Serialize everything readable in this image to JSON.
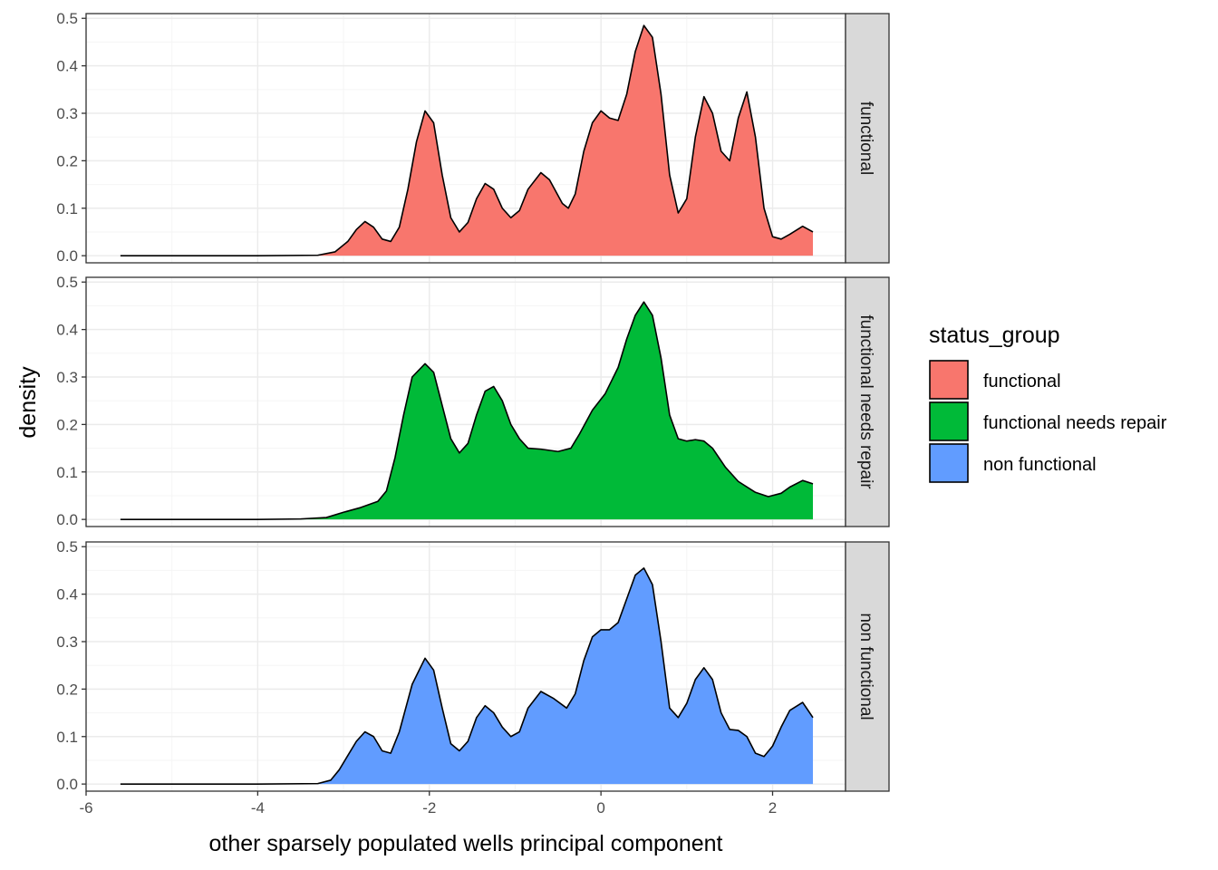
{
  "chart_data": {
    "type": "area",
    "xlabel": "other sparsely populated wells principal component",
    "ylabel": "density",
    "xlim": [
      -6,
      2.85
    ],
    "ylim": [
      -0.015,
      0.51
    ],
    "x_ticks": [
      -6,
      -4,
      -2,
      0,
      2
    ],
    "y_ticks": [
      0.0,
      0.1,
      0.2,
      0.3,
      0.4,
      0.5
    ],
    "x_tick_labels": [
      "-6",
      "-4",
      "-2",
      "0",
      "2"
    ],
    "y_tick_labels": [
      "0.0",
      "0.1",
      "0.2",
      "0.3",
      "0.4",
      "0.5"
    ],
    "grid": true,
    "legend_position": "right",
    "legend_title": "status_group",
    "series": [
      {
        "name": "functional",
        "color": "#F8766D",
        "points": [
          [
            -5.6,
            0
          ],
          [
            -4,
            0
          ],
          [
            -3.3,
            0.001
          ],
          [
            -3.1,
            0.008
          ],
          [
            -2.95,
            0.03
          ],
          [
            -2.85,
            0.055
          ],
          [
            -2.75,
            0.072
          ],
          [
            -2.65,
            0.06
          ],
          [
            -2.55,
            0.035
          ],
          [
            -2.45,
            0.03
          ],
          [
            -2.35,
            0.06
          ],
          [
            -2.25,
            0.14
          ],
          [
            -2.15,
            0.24
          ],
          [
            -2.05,
            0.305
          ],
          [
            -1.95,
            0.28
          ],
          [
            -1.85,
            0.17
          ],
          [
            -1.75,
            0.08
          ],
          [
            -1.65,
            0.05
          ],
          [
            -1.55,
            0.07
          ],
          [
            -1.45,
            0.12
          ],
          [
            -1.35,
            0.152
          ],
          [
            -1.25,
            0.14
          ],
          [
            -1.15,
            0.1
          ],
          [
            -1.05,
            0.08
          ],
          [
            -0.95,
            0.095
          ],
          [
            -0.85,
            0.14
          ],
          [
            -0.7,
            0.175
          ],
          [
            -0.6,
            0.16
          ],
          [
            -0.45,
            0.11
          ],
          [
            -0.38,
            0.1
          ],
          [
            -0.3,
            0.13
          ],
          [
            -0.2,
            0.22
          ],
          [
            -0.1,
            0.28
          ],
          [
            0,
            0.305
          ],
          [
            0.1,
            0.29
          ],
          [
            0.2,
            0.285
          ],
          [
            0.3,
            0.34
          ],
          [
            0.4,
            0.43
          ],
          [
            0.5,
            0.485
          ],
          [
            0.6,
            0.46
          ],
          [
            0.7,
            0.34
          ],
          [
            0.8,
            0.17
          ],
          [
            0.9,
            0.09
          ],
          [
            1,
            0.12
          ],
          [
            1.1,
            0.25
          ],
          [
            1.2,
            0.335
          ],
          [
            1.3,
            0.3
          ],
          [
            1.4,
            0.22
          ],
          [
            1.5,
            0.2
          ],
          [
            1.6,
            0.29
          ],
          [
            1.7,
            0.345
          ],
          [
            1.8,
            0.25
          ],
          [
            1.9,
            0.1
          ],
          [
            2,
            0.04
          ],
          [
            2.1,
            0.035
          ],
          [
            2.2,
            0.045
          ],
          [
            2.35,
            0.062
          ],
          [
            2.47,
            0.05
          ]
        ]
      },
      {
        "name": "functional needs repair",
        "color": "#00BA38",
        "points": [
          [
            -5.6,
            0
          ],
          [
            -4,
            0
          ],
          [
            -3.5,
            0.001
          ],
          [
            -3.2,
            0.004
          ],
          [
            -3,
            0.015
          ],
          [
            -2.8,
            0.025
          ],
          [
            -2.6,
            0.038
          ],
          [
            -2.5,
            0.06
          ],
          [
            -2.4,
            0.13
          ],
          [
            -2.3,
            0.22
          ],
          [
            -2.2,
            0.3
          ],
          [
            -2.05,
            0.328
          ],
          [
            -1.95,
            0.31
          ],
          [
            -1.85,
            0.24
          ],
          [
            -1.75,
            0.17
          ],
          [
            -1.65,
            0.14
          ],
          [
            -1.55,
            0.16
          ],
          [
            -1.45,
            0.22
          ],
          [
            -1.35,
            0.27
          ],
          [
            -1.25,
            0.28
          ],
          [
            -1.15,
            0.25
          ],
          [
            -1.05,
            0.2
          ],
          [
            -0.95,
            0.17
          ],
          [
            -0.85,
            0.15
          ],
          [
            -0.7,
            0.148
          ],
          [
            -0.5,
            0.143
          ],
          [
            -0.35,
            0.15
          ],
          [
            -0.25,
            0.18
          ],
          [
            -0.1,
            0.23
          ],
          [
            0.05,
            0.265
          ],
          [
            0.2,
            0.32
          ],
          [
            0.3,
            0.38
          ],
          [
            0.4,
            0.43
          ],
          [
            0.5,
            0.458
          ],
          [
            0.6,
            0.43
          ],
          [
            0.7,
            0.34
          ],
          [
            0.8,
            0.22
          ],
          [
            0.9,
            0.17
          ],
          [
            1,
            0.165
          ],
          [
            1.1,
            0.168
          ],
          [
            1.2,
            0.165
          ],
          [
            1.3,
            0.15
          ],
          [
            1.45,
            0.11
          ],
          [
            1.6,
            0.08
          ],
          [
            1.8,
            0.057
          ],
          [
            1.95,
            0.048
          ],
          [
            2.1,
            0.055
          ],
          [
            2.2,
            0.068
          ],
          [
            2.35,
            0.082
          ],
          [
            2.47,
            0.075
          ]
        ]
      },
      {
        "name": "non functional",
        "color": "#619CFF",
        "points": [
          [
            -5.6,
            0
          ],
          [
            -4,
            0
          ],
          [
            -3.3,
            0.001
          ],
          [
            -3.15,
            0.008
          ],
          [
            -3.05,
            0.03
          ],
          [
            -2.95,
            0.06
          ],
          [
            -2.85,
            0.09
          ],
          [
            -2.75,
            0.11
          ],
          [
            -2.65,
            0.1
          ],
          [
            -2.55,
            0.07
          ],
          [
            -2.45,
            0.065
          ],
          [
            -2.35,
            0.11
          ],
          [
            -2.2,
            0.21
          ],
          [
            -2.05,
            0.265
          ],
          [
            -1.95,
            0.24
          ],
          [
            -1.85,
            0.16
          ],
          [
            -1.75,
            0.085
          ],
          [
            -1.65,
            0.07
          ],
          [
            -1.55,
            0.09
          ],
          [
            -1.45,
            0.14
          ],
          [
            -1.35,
            0.165
          ],
          [
            -1.25,
            0.15
          ],
          [
            -1.15,
            0.12
          ],
          [
            -1.05,
            0.1
          ],
          [
            -0.95,
            0.11
          ],
          [
            -0.85,
            0.16
          ],
          [
            -0.7,
            0.195
          ],
          [
            -0.55,
            0.18
          ],
          [
            -0.4,
            0.16
          ],
          [
            -0.3,
            0.19
          ],
          [
            -0.2,
            0.26
          ],
          [
            -0.1,
            0.31
          ],
          [
            0,
            0.325
          ],
          [
            0.1,
            0.325
          ],
          [
            0.2,
            0.34
          ],
          [
            0.3,
            0.39
          ],
          [
            0.4,
            0.44
          ],
          [
            0.5,
            0.455
          ],
          [
            0.6,
            0.42
          ],
          [
            0.7,
            0.3
          ],
          [
            0.8,
            0.16
          ],
          [
            0.9,
            0.14
          ],
          [
            1,
            0.17
          ],
          [
            1.1,
            0.22
          ],
          [
            1.2,
            0.245
          ],
          [
            1.3,
            0.22
          ],
          [
            1.4,
            0.15
          ],
          [
            1.5,
            0.115
          ],
          [
            1.6,
            0.113
          ],
          [
            1.7,
            0.1
          ],
          [
            1.8,
            0.065
          ],
          [
            1.9,
            0.058
          ],
          [
            2,
            0.08
          ],
          [
            2.1,
            0.12
          ],
          [
            2.2,
            0.155
          ],
          [
            2.35,
            0.172
          ],
          [
            2.47,
            0.14
          ]
        ]
      }
    ]
  },
  "legend": {
    "title": "status_group",
    "items": [
      {
        "label": "functional",
        "color": "#F8766D"
      },
      {
        "label": "functional needs repair",
        "color": "#00BA38"
      },
      {
        "label": "non functional",
        "color": "#619CFF"
      }
    ]
  },
  "colors": {
    "panel_border": "#333333",
    "grid_major": "#ebebeb",
    "grid_minor": "#f5f5f5",
    "strip_fill": "#d9d9d9",
    "tick_text": "#4d4d4d"
  }
}
